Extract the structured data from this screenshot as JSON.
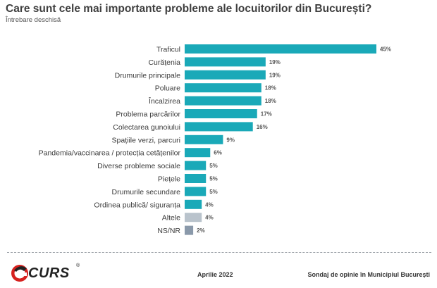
{
  "header": {
    "title": "Care sunt cele mai importante probleme ale locuitorilor din București?",
    "subtitle": "Întrebare deschisă"
  },
  "footer": {
    "brand": "CURS",
    "registered": "®",
    "date": "Aprilie 2022",
    "source": "Sondaj de opinie în Municipiul București"
  },
  "chart_data": {
    "type": "bar",
    "orientation": "horizontal",
    "categories": [
      "Traficul",
      "Curățenia",
      "Drumurile principale",
      "Poluare",
      "Încalzirea",
      "Problema parcărilor",
      "Colectarea gunoiului",
      "Spațiile verzi, parcuri",
      "Pandemia/vaccinarea / protecția cetățenilor",
      "Diverse probleme sociale",
      "Piețele",
      "Drumurile secundare",
      "Ordinea publică/ siguranța",
      "Altele",
      "NS/NR"
    ],
    "values": [
      45,
      19,
      19,
      18,
      18,
      17,
      16,
      9,
      6,
      5,
      5,
      5,
      4,
      4,
      2
    ],
    "value_labels": [
      "45%",
      "19%",
      "19%",
      "18%",
      "18%",
      "17%",
      "16%",
      "9%",
      "6%",
      "5%",
      "5%",
      "5%",
      "4%",
      "4%",
      "2%"
    ],
    "unit": "%",
    "xlim": [
      0,
      45
    ],
    "colors": [
      "#1aa9b8",
      "#1aa9b8",
      "#1aa9b8",
      "#1aa9b8",
      "#1aa9b8",
      "#1aa9b8",
      "#1aa9b8",
      "#1aa9b8",
      "#1aa9b8",
      "#1aa9b8",
      "#1aa9b8",
      "#1aa9b8",
      "#1aa9b8",
      "#b9c3cc",
      "#8a99aa"
    ],
    "grid": false,
    "legend": "none"
  }
}
